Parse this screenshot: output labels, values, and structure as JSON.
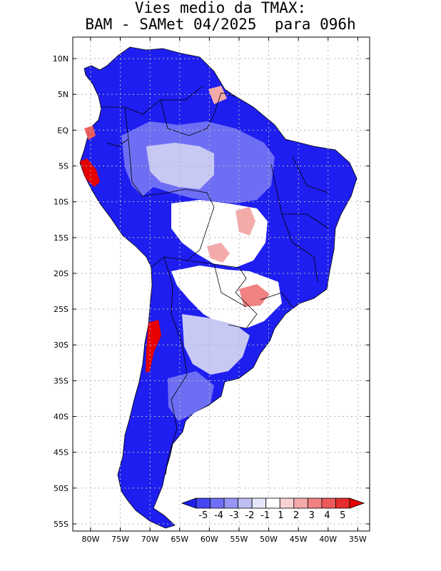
{
  "title": {
    "line1": "Vies medio da TMAX:",
    "line2": "BAM - SAMet 04/2025  para 096h"
  },
  "axes": {
    "lat_labels": [
      "10N",
      "5N",
      "EQ",
      "5S",
      "10S",
      "15S",
      "20S",
      "25S",
      "30S",
      "35S",
      "40S",
      "45S",
      "50S",
      "55S"
    ],
    "lat_values": [
      10,
      5,
      0,
      -5,
      -10,
      -15,
      -20,
      -25,
      -30,
      -35,
      -40,
      -45,
      -50,
      -55
    ],
    "lon_labels": [
      "80W",
      "75W",
      "70W",
      "65W",
      "60W",
      "55W",
      "50W",
      "45W",
      "40W",
      "35W"
    ],
    "lon_values": [
      -80,
      -75,
      -70,
      -65,
      -60,
      -55,
      -50,
      -45,
      -40,
      -35
    ],
    "lon_range": [
      -83,
      -33
    ],
    "lat_range": [
      -56,
      13
    ]
  },
  "colorbar": {
    "labels": [
      "-5",
      "-4",
      "-3",
      "-2",
      "-1",
      "1",
      "2",
      "3",
      "4",
      "5"
    ],
    "colors": [
      "#1e1ef0",
      "#4646f5",
      "#6e6ef5",
      "#9696f5",
      "#bebef5",
      "#e6e6fa",
      "#ffffff",
      "#f8d2d2",
      "#f5aaaa",
      "#f08282",
      "#eb5a5a",
      "#e62d2d",
      "#e60000"
    ]
  },
  "map": {
    "colors": {
      "strong_cold": "#1e1ef0",
      "cold": "#4b4bf5",
      "mild_cold": "#8c8cf5",
      "light_cold": "#c8c8f5",
      "warm": "#f0a0a0",
      "hot": "#e60000",
      "border": "#000000"
    }
  }
}
